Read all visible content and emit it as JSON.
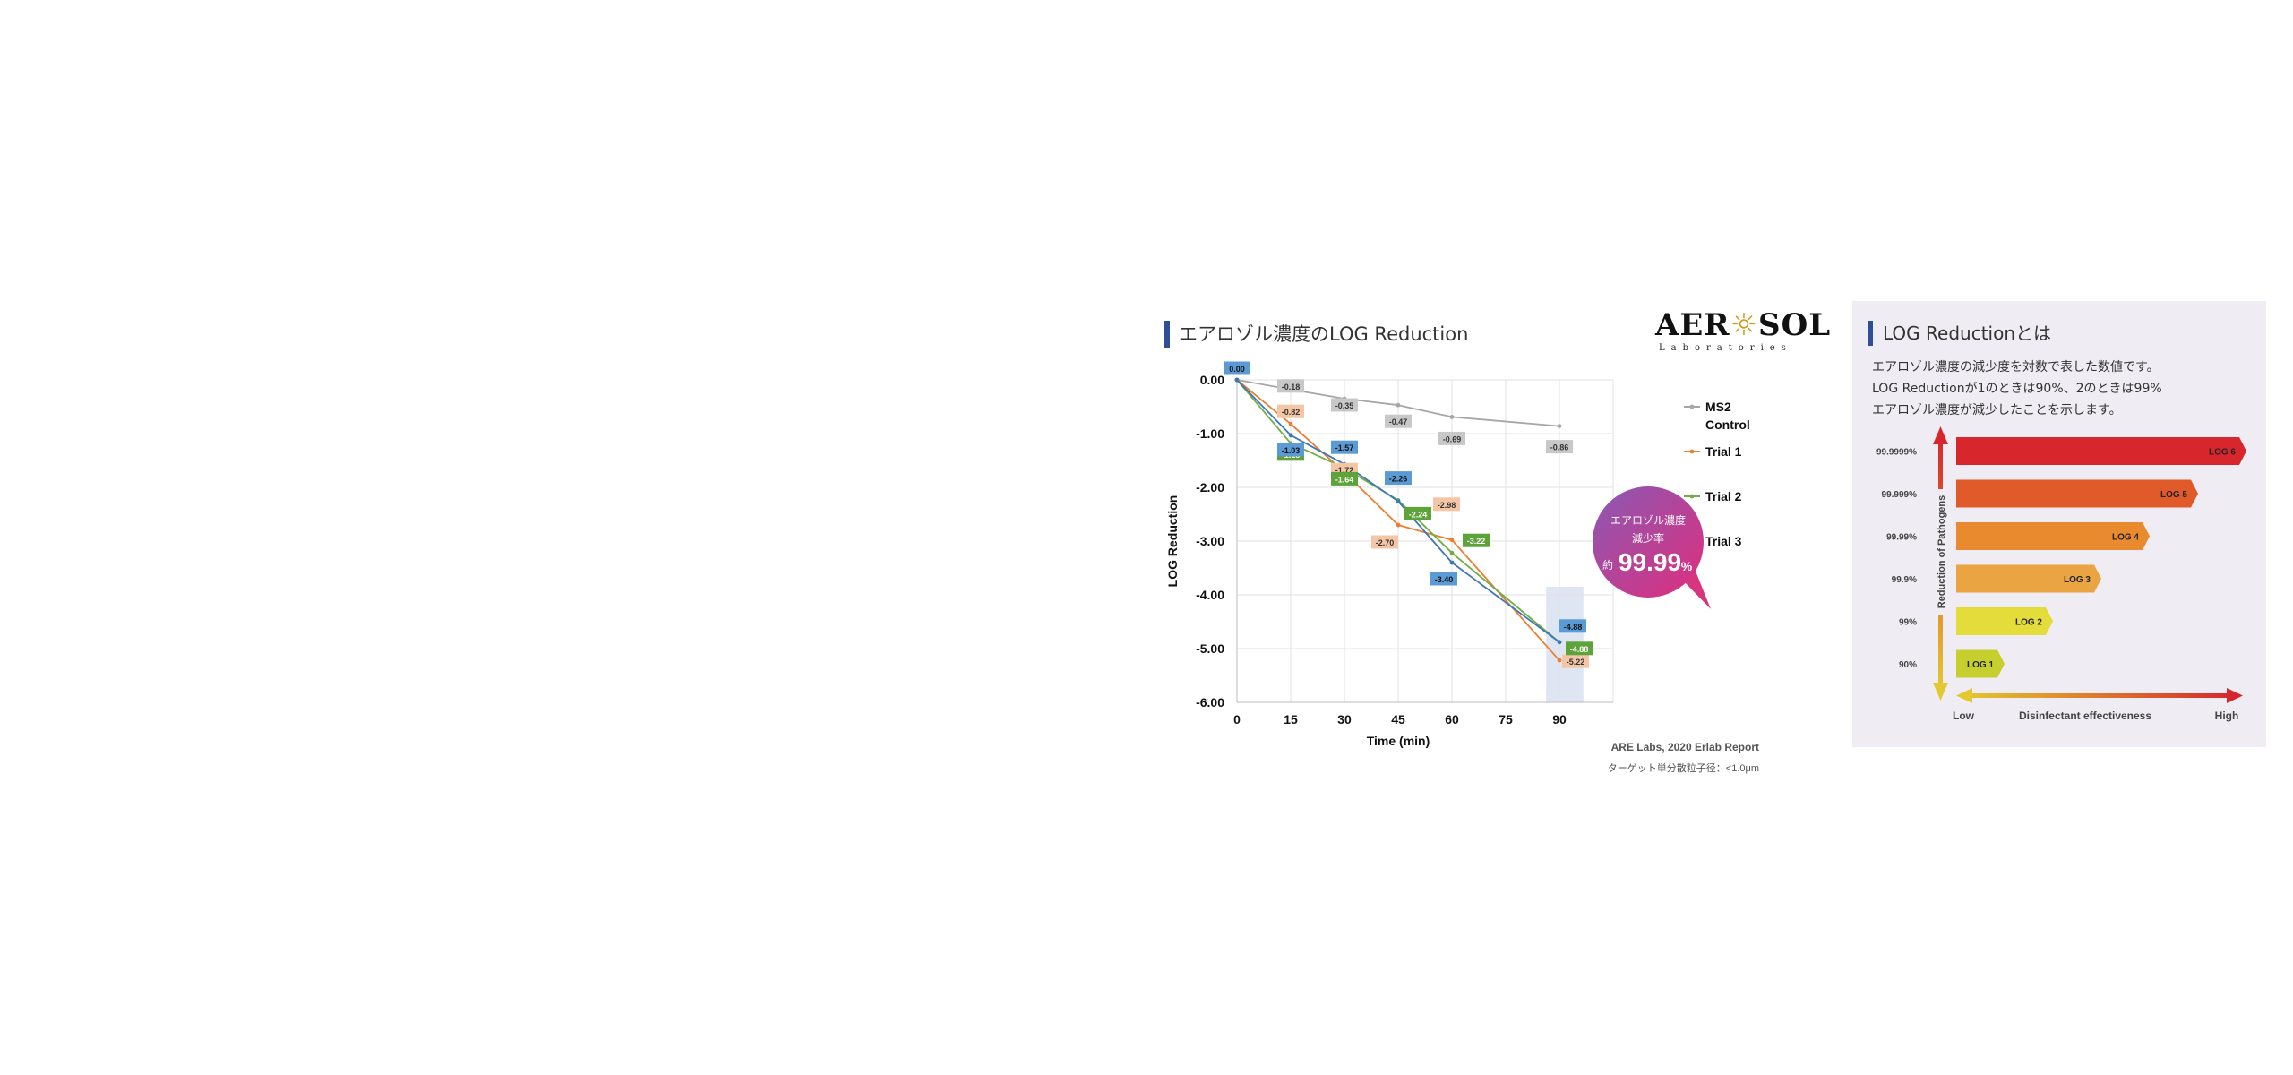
{
  "left_panel": {
    "title": "エアロゾル濃度のLOG Reduction",
    "logo": {
      "main": "AEROSOL",
      "sub": "Laboratories"
    },
    "source": "ARE Labs, 2020 Erlab Report",
    "note": "ターゲット単分散粒子径：<1.0μm",
    "callout": {
      "line1": "エアロゾル濃度",
      "line2": "減少率",
      "prefix": "約",
      "value": "99.99",
      "unit": "%"
    }
  },
  "chart_data": {
    "type": "line",
    "xlabel": "Time (min)",
    "ylabel": "LOG Reduction",
    "x_ticks": [
      0,
      15,
      30,
      45,
      60,
      75,
      90
    ],
    "xlim": [
      0,
      105
    ],
    "ylim": [
      -6,
      0
    ],
    "y_ticks": [
      "0.00",
      "-1.00",
      "-2.00",
      "-3.00",
      "-4.00",
      "-5.00",
      "-6.00"
    ],
    "grid": true,
    "legend_position": "right",
    "series": [
      {
        "name": "MS2 Control",
        "color": "#a6a6a6",
        "label_bg": "#c8c8c8",
        "label_fg": "#333333",
        "points": [
          [
            0,
            0.0
          ],
          [
            15,
            -0.18
          ],
          [
            30,
            -0.35
          ],
          [
            45,
            -0.47
          ],
          [
            60,
            -0.69
          ],
          [
            90,
            -0.86
          ]
        ],
        "labels": [
          {
            "x": 15,
            "text": "-0.18"
          },
          {
            "x": 30,
            "text": "-0.35"
          },
          {
            "x": 45,
            "text": "-0.47"
          },
          {
            "x": 60,
            "text": "-0.69"
          },
          {
            "x": 90,
            "text": "-0.86"
          }
        ]
      },
      {
        "name": "Trial 1",
        "color": "#ed7d31",
        "label_bg": "#f4c6a6",
        "label_fg": "#333333",
        "points": [
          [
            0,
            0.0
          ],
          [
            15,
            -0.82
          ],
          [
            30,
            -1.72
          ],
          [
            45,
            -2.7
          ],
          [
            60,
            -2.98
          ],
          [
            90,
            -5.22
          ]
        ],
        "labels": [
          {
            "x": 15,
            "text": "-0.82"
          },
          {
            "x": 30,
            "text": "-1.72"
          },
          {
            "x": 45,
            "text": "-2.70"
          },
          {
            "x": 60,
            "text": "-2.98"
          },
          {
            "x": 90,
            "text": "-5.22"
          }
        ]
      },
      {
        "name": "Trial 2",
        "color": "#70ad47",
        "label_bg": "#5ea33a",
        "label_fg": "#ffffff",
        "points": [
          [
            0,
            0.0
          ],
          [
            15,
            -1.18
          ],
          [
            30,
            -1.64
          ],
          [
            45,
            -2.24
          ],
          [
            60,
            -3.22
          ],
          [
            90,
            -4.88
          ]
        ],
        "labels": [
          {
            "x": 15,
            "text": "-1.18"
          },
          {
            "x": 30,
            "text": "-1.64"
          },
          {
            "x": 45,
            "text": "-2.24"
          },
          {
            "x": 60,
            "text": "-3.22"
          },
          {
            "x": 90,
            "text": "-4.88"
          }
        ]
      },
      {
        "name": "Trial 3",
        "color": "#3e77b6",
        "label_bg": "#5b9bd5",
        "label_fg": "#111111",
        "points": [
          [
            0,
            0.0
          ],
          [
            15,
            -1.03
          ],
          [
            30,
            -1.57
          ],
          [
            45,
            -2.26
          ],
          [
            60,
            -3.4
          ],
          [
            90,
            -4.88
          ]
        ],
        "labels": [
          {
            "x": 0,
            "text": "0.00"
          },
          {
            "x": 15,
            "text": "-1.03"
          },
          {
            "x": 30,
            "text": "-1.57"
          },
          {
            "x": 45,
            "text": "-2.26"
          },
          {
            "x": 60,
            "text": "-3.40"
          },
          {
            "x": 90,
            "text": "-4.88"
          }
        ]
      }
    ]
  },
  "right_panel": {
    "title": "LOG Reductionとは",
    "description": [
      "エアロゾル濃度の減少度を対数で表した数値です。",
      "LOG Reductionが1のときは90%、2のときは99%",
      "エアロゾル濃度が減少したことを示します。"
    ],
    "axis_label": "Reduction of Pathogens",
    "effectiveness_label": "Disinfectant effectiveness",
    "low_label": "Low",
    "high_label": "High",
    "levels": [
      {
        "percent": "99.9999%",
        "label": "LOG 6",
        "log": 6,
        "color": "#d7262c"
      },
      {
        "percent": "99.999%",
        "label": "LOG 5",
        "log": 5,
        "color": "#e05a2a"
      },
      {
        "percent": "99.99%",
        "label": "LOG 4",
        "log": 4,
        "color": "#ea8a2e"
      },
      {
        "percent": "99.9%",
        "label": "LOG 3",
        "log": 3,
        "color": "#eaa441"
      },
      {
        "percent": "99%",
        "label": "LOG 2",
        "log": 2,
        "color": "#e3dc3a"
      },
      {
        "percent": "90%",
        "label": "LOG 1",
        "log": 1,
        "color": "#c6cf2e"
      }
    ]
  }
}
